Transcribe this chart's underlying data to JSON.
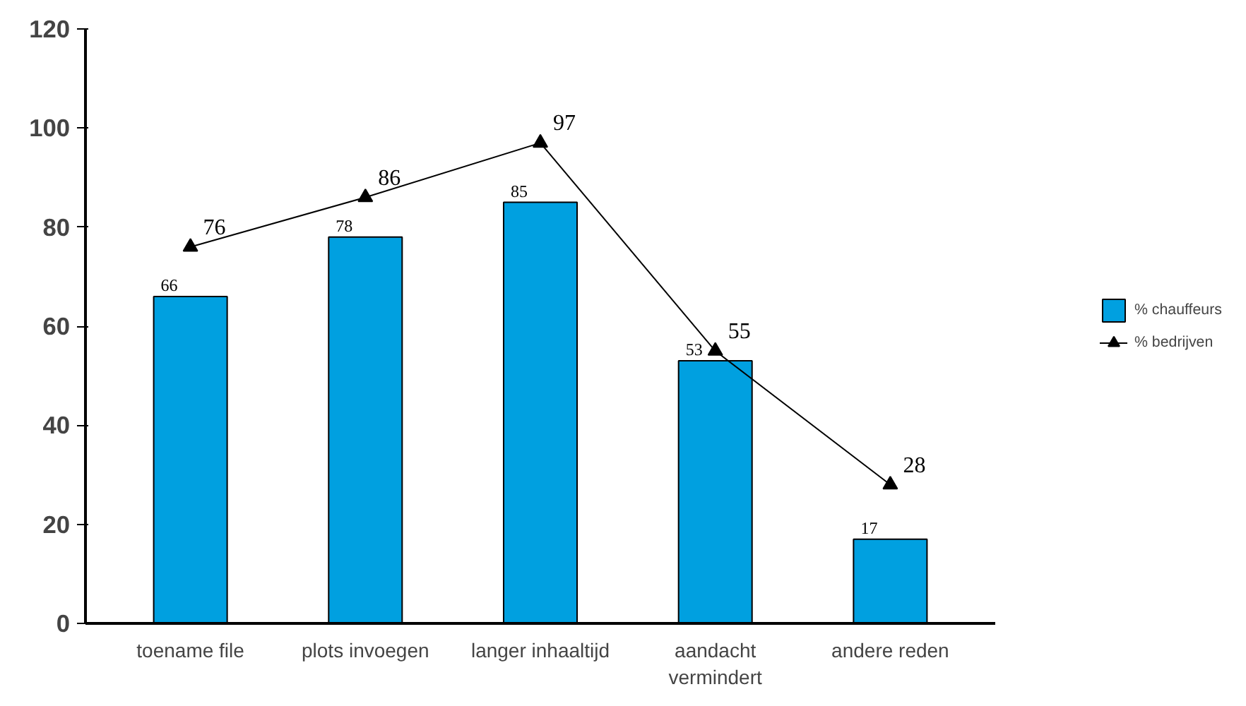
{
  "chart_data": {
    "type": "bar",
    "categories": [
      "toename file",
      "plots invoegen",
      "langer inhaaltijd",
      "aandacht\nvermindert",
      "andere reden"
    ],
    "series": [
      {
        "name": "% chauffeurs",
        "color": "#00a0e0",
        "values": [
          66,
          78,
          85,
          53,
          17
        ]
      },
      {
        "name": "% bedrijven",
        "type": "line",
        "color": "#000000",
        "marker": "triangle",
        "values": [
          76,
          86,
          97,
          55,
          28
        ]
      }
    ],
    "ylim": [
      0,
      120
    ],
    "yticks": [
      0,
      20,
      40,
      60,
      80,
      100,
      120
    ],
    "grid": false,
    "legend": "right",
    "data_labels": true
  }
}
